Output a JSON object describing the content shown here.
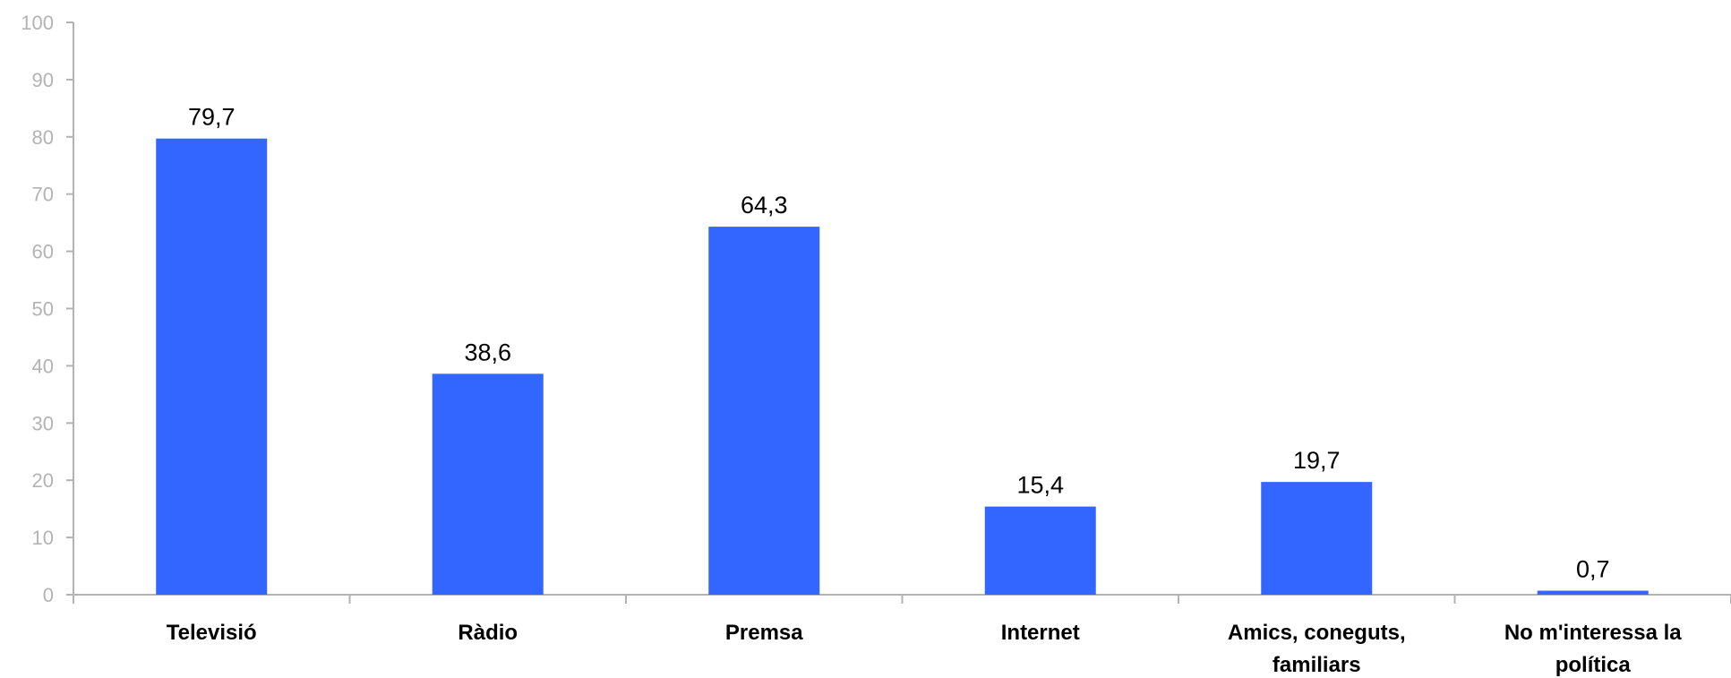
{
  "chart_data": {
    "type": "bar",
    "categories": [
      [
        "Televisió"
      ],
      [
        "Ràdio"
      ],
      [
        "Premsa"
      ],
      [
        "Internet"
      ],
      [
        "Amics, coneguts,",
        "familiars"
      ],
      [
        "No m'interessa la",
        "política"
      ]
    ],
    "values": [
      79.7,
      38.6,
      64.3,
      15.4,
      19.7,
      0.7
    ],
    "value_labels": [
      "79,7",
      "38,6",
      "64,3",
      "15,4",
      "19,7",
      "0,7"
    ],
    "ylim": [
      0,
      100
    ],
    "yticks": [
      0,
      10,
      20,
      30,
      40,
      50,
      60,
      70,
      80,
      90,
      100
    ],
    "grid": false,
    "legend": "none",
    "bar_color": "#3366FF",
    "axis_color": "#b3b3b3"
  }
}
